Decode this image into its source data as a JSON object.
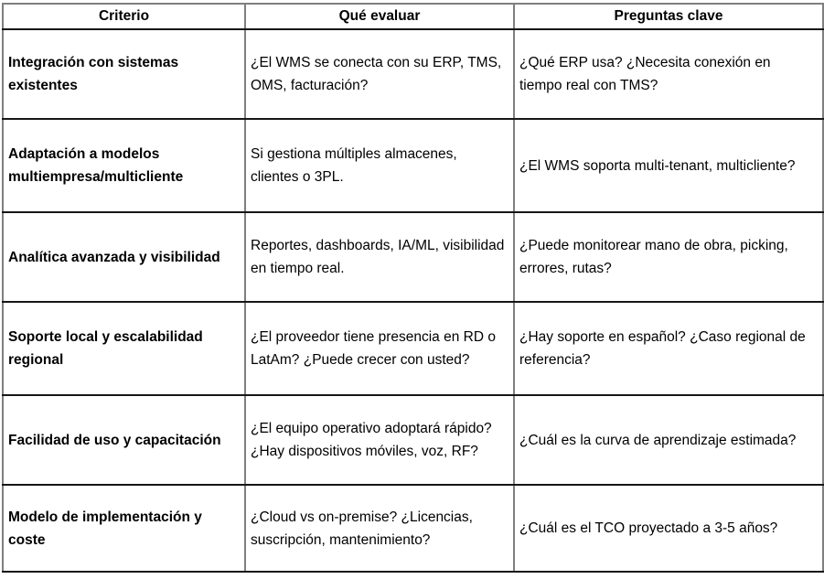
{
  "table": {
    "headers": [
      "Criterio",
      "Qué evaluar",
      "Preguntas clave"
    ],
    "rows": [
      {
        "criterio": "Integración con sistemas existentes",
        "que_evaluar": "¿El WMS se conecta con su ERP, TMS, OMS, facturación?",
        "preguntas_clave": "¿Qué ERP usa? ¿Necesita conexión en tiempo real con TMS?"
      },
      {
        "criterio": "Adaptación a modelos multiempresa/multicliente",
        "que_evaluar": "Si gestiona múltiples almacenes, clientes o 3PL.",
        "preguntas_clave": "¿El WMS soporta multi-tenant, multicliente?"
      },
      {
        "criterio": "Analítica avanzada y visibilidad",
        "que_evaluar": "Reportes, dashboards, IA/ML, visibilidad en tiempo real.",
        "preguntas_clave": "¿Puede monitorear mano de obra, picking, errores, rutas?"
      },
      {
        "criterio": "Soporte local y escalabilidad regional",
        "que_evaluar": "¿El proveedor tiene presencia en RD o LatAm? ¿Puede crecer con usted?",
        "preguntas_clave": "¿Hay soporte en español? ¿Caso regional de referencia?"
      },
      {
        "criterio": "Facilidad de uso y capacitación",
        "que_evaluar": "¿El equipo operativo adoptará rápido? ¿Hay dispositivos móviles, voz, RF?",
        "preguntas_clave": "¿Cuál es la curva de aprendizaje estimada?"
      },
      {
        "criterio": "Modelo de implementación y coste",
        "que_evaluar": "¿Cloud vs on-premise? ¿Licencias, suscripción, mantenimiento?",
        "preguntas_clave": "¿Cuál es el TCO proyectado a 3-5 años?"
      }
    ]
  },
  "colors": {
    "border_vertical": "#7f7f7f",
    "border_horizontal": "#161616",
    "text": "#000000",
    "background": "#ffffff"
  }
}
